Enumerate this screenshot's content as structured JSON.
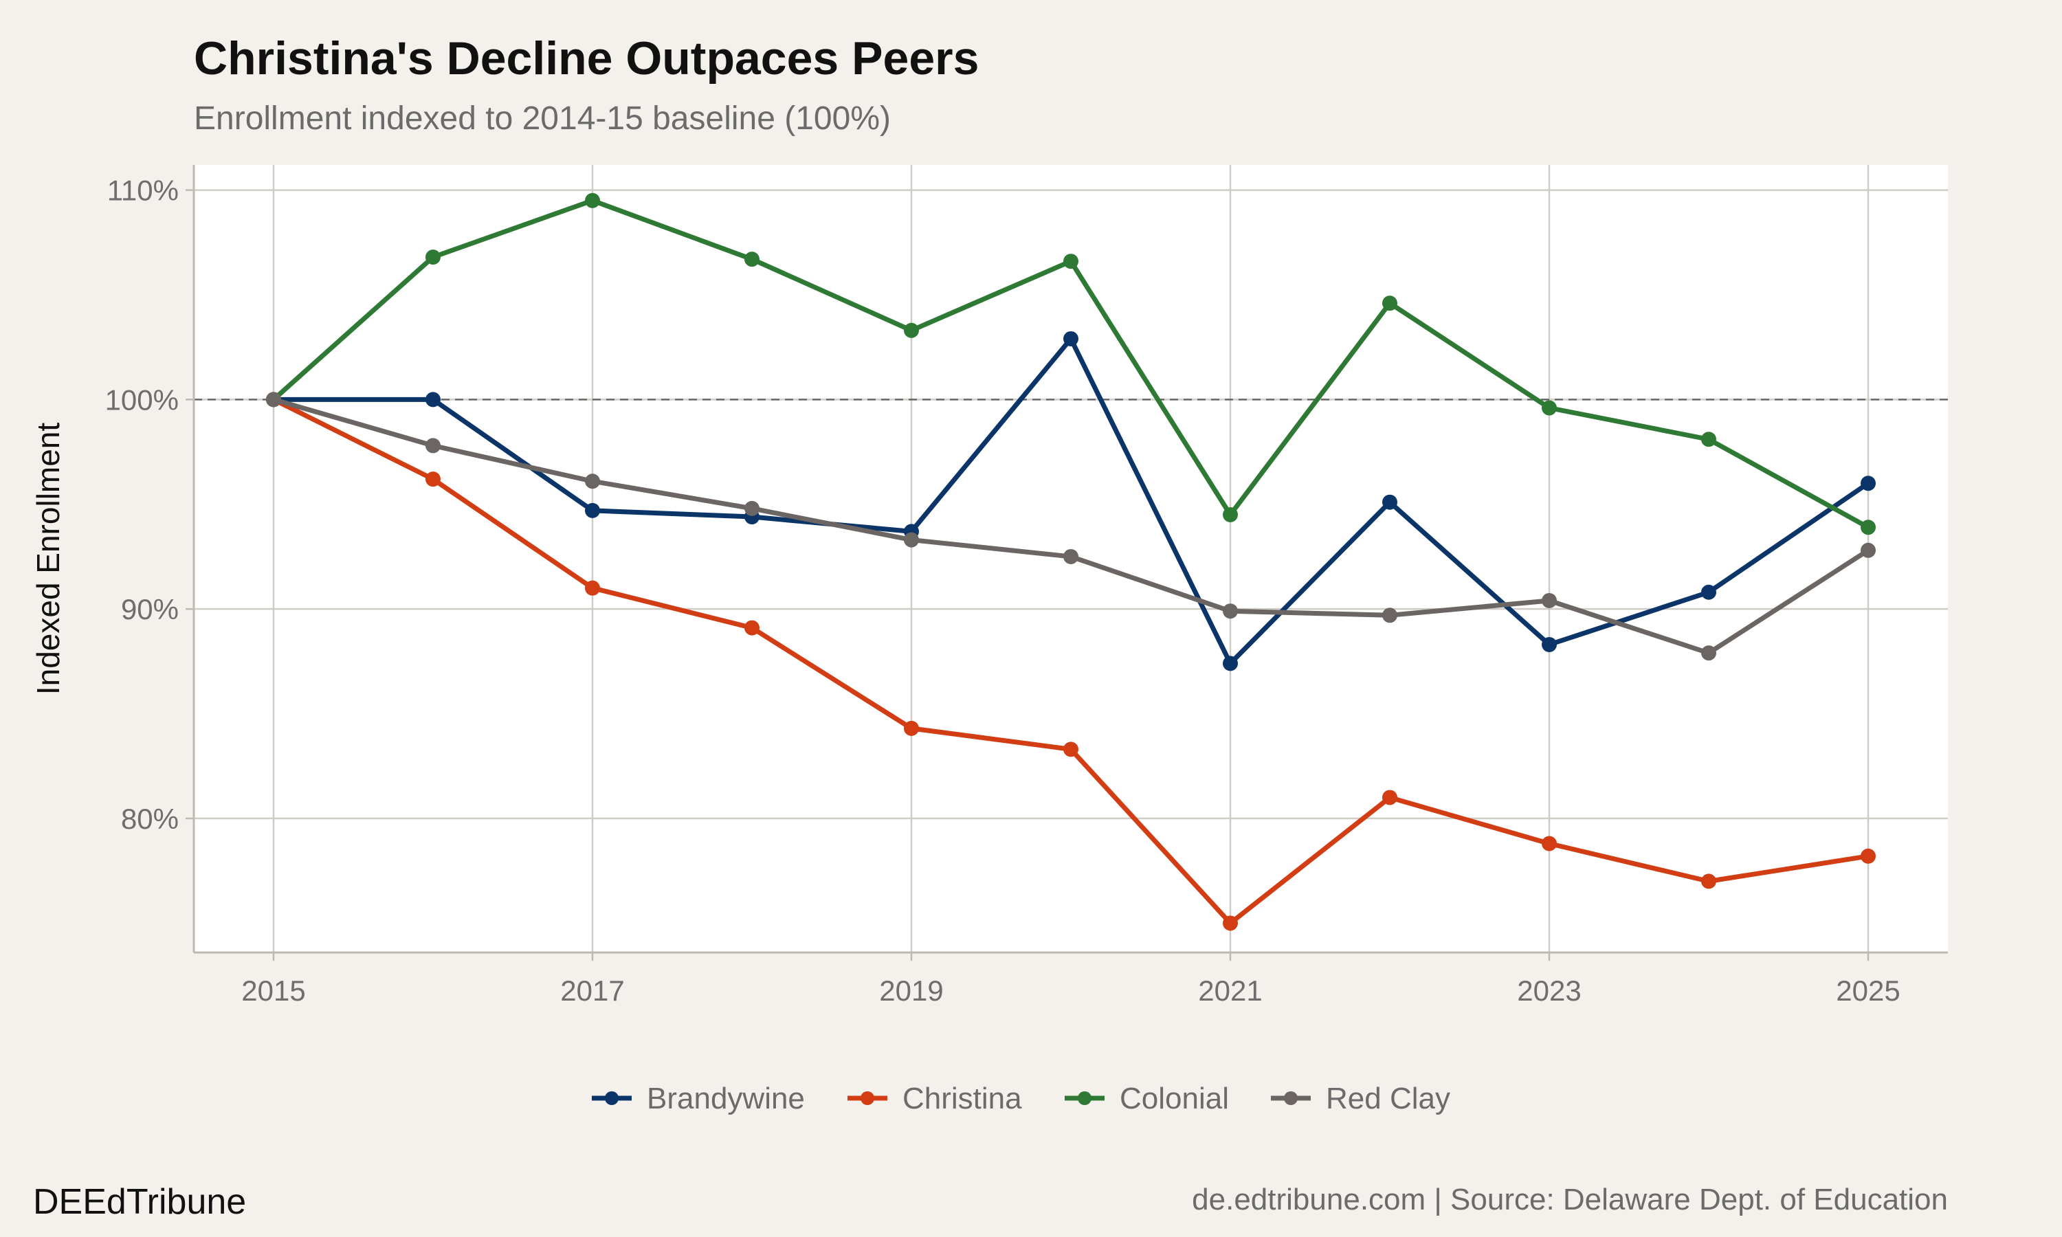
{
  "chart_data": {
    "type": "line",
    "title": "Christina's Decline Outpaces Peers",
    "subtitle": "Enrollment indexed to 2014-15 baseline (100%)",
    "xlabel": "",
    "ylabel": "Indexed Enrollment",
    "x": [
      2015,
      2016,
      2017,
      2018,
      2019,
      2020,
      2021,
      2022,
      2023,
      2024,
      2025
    ],
    "x_ticks": [
      2015,
      2017,
      2019,
      2021,
      2023,
      2025
    ],
    "x_tick_labels": [
      "2015",
      "2017",
      "2019",
      "2021",
      "2023",
      "2025"
    ],
    "xlim": [
      2014.5,
      2025.5
    ],
    "y_ticks": [
      80,
      90,
      100,
      110
    ],
    "y_tick_labels": [
      "80%",
      "90%",
      "100%",
      "110%"
    ],
    "ylim": [
      73.6,
      111.2
    ],
    "grid": true,
    "reference_line": 100,
    "legend_position": "bottom",
    "series": [
      {
        "name": "Brandywine",
        "color": "#0b3568",
        "values": [
          100,
          100,
          94.7,
          94.4,
          93.7,
          102.9,
          87.4,
          95.1,
          88.3,
          90.8,
          96.0
        ]
      },
      {
        "name": "Christina",
        "color": "#d23d14",
        "values": [
          100,
          96.2,
          91.0,
          89.1,
          84.3,
          83.3,
          75.0,
          81.0,
          78.8,
          77.0,
          78.2
        ]
      },
      {
        "name": "Colonial",
        "color": "#2e7a35",
        "values": [
          100,
          106.8,
          109.5,
          106.7,
          103.3,
          106.6,
          94.5,
          104.6,
          99.6,
          98.1,
          93.9
        ]
      },
      {
        "name": "Red Clay",
        "color": "#6b6663",
        "values": [
          100,
          97.8,
          96.1,
          94.8,
          93.3,
          92.5,
          89.9,
          89.7,
          90.4,
          87.9,
          92.8
        ]
      }
    ]
  },
  "caption": {
    "left": "DEEdTribune",
    "right": "de.edtribune.com | Source: Delaware Dept. of Education"
  }
}
